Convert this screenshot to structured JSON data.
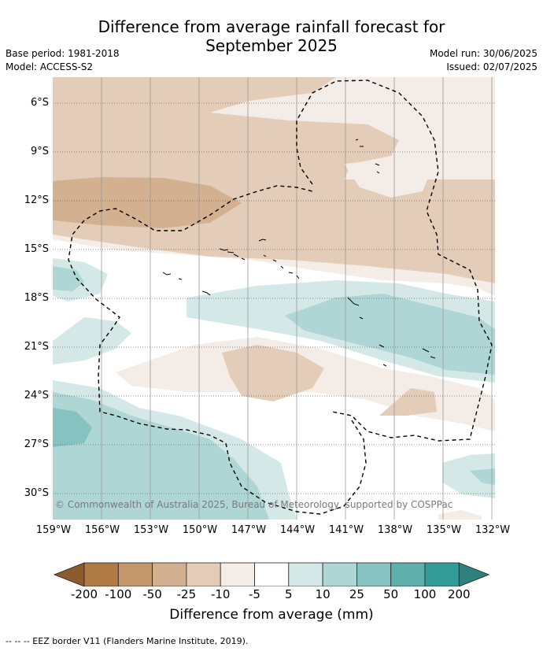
{
  "title_line1": "Difference from average rainfall forecast for",
  "title_line2": "September 2025",
  "base_period": "Base period: 1981-2018",
  "model": "Model: ACCESS-S2",
  "model_run": "Model run: 30/06/2025",
  "issued": "Issued: 02/07/2025",
  "copyright": "© Commonwealth of Australia 2025, Bureau of Meteorology, supported by COSPPac",
  "y_ticks": [
    "6°S",
    "9°S",
    "12°S",
    "15°S",
    "18°S",
    "21°S",
    "24°S",
    "27°S",
    "30°S"
  ],
  "x_ticks": [
    "159°W",
    "156°W",
    "153°W",
    "150°W",
    "147°W",
    "144°W",
    "141°W",
    "138°W",
    "135°W",
    "132°W"
  ],
  "colorbar": {
    "labels": [
      "-200",
      "-100",
      "-50",
      "-25",
      "-10",
      "-5",
      "5",
      "10",
      "25",
      "50",
      "100",
      "200"
    ],
    "colors": [
      "#8c5a2b",
      "#b07a45",
      "#c4966b",
      "#d3b08f",
      "#e3cdb9",
      "#f4ece6",
      "#ffffff",
      "#d4e9e7",
      "#aed6d4",
      "#86c2c0",
      "#5fafad",
      "#349c98",
      "#2f7f7b"
    ],
    "title": "Difference from average (mm)"
  },
  "legend": "--  --  -- EEZ border V11 (Flanders Marine Institute, 2019)."
}
